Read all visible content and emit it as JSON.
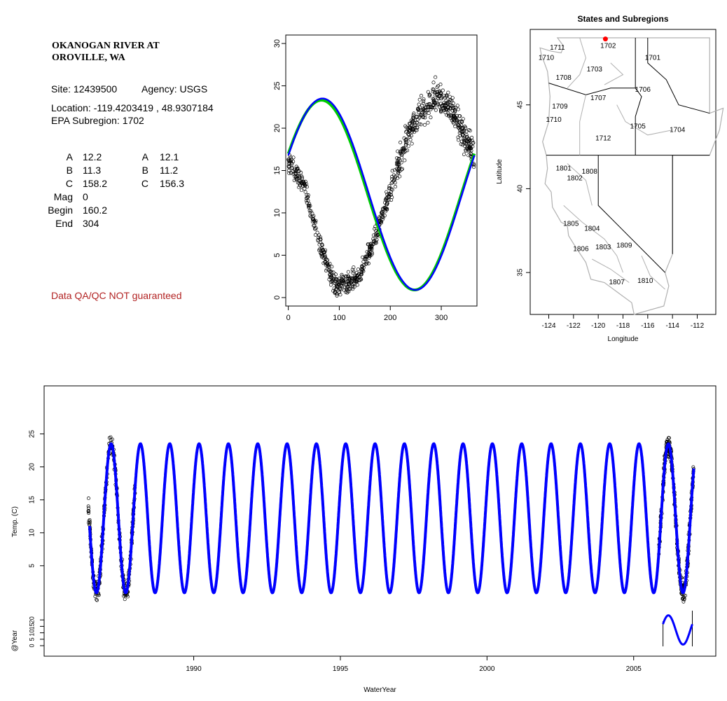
{
  "site": {
    "title_line1": "OKANOGAN RIVER AT",
    "title_line2": "OROVILLE, WA",
    "site_label": "Site: 12439500",
    "agency_label": "Agency: USGS",
    "location_label": "Location: -119.4203419 , 48.9307184",
    "subregion_label": "EPA Subregion: 1702",
    "params_left": [
      {
        "name": "A",
        "value": "12.2"
      },
      {
        "name": "B",
        "value": "11.3"
      },
      {
        "name": "C",
        "value": "158.2"
      },
      {
        "name": "Mag",
        "value": "0"
      },
      {
        "name": "Begin",
        "value": "160.2"
      },
      {
        "name": "End",
        "value": "304"
      }
    ],
    "params_right": [
      {
        "name": "A",
        "value": "12.1"
      },
      {
        "name": "B",
        "value": "11.2"
      },
      {
        "name": "C",
        "value": "156.3"
      }
    ],
    "qa_note": "Data QA/QC NOT guaranteed"
  },
  "colors": {
    "fit_blue": "#0000ff",
    "fit_green": "#00cc00",
    "site_marker": "#ff0000",
    "qa_text": "#b22222",
    "boundary_gray": "#b0b0b0"
  },
  "chart_data": [
    {
      "type": "scatter",
      "xlim": [
        -5,
        370
      ],
      "ylim": [
        -1,
        31
      ],
      "xticks": [
        "0",
        "100",
        "200",
        "300"
      ],
      "yticks": [
        "0",
        "5",
        "10",
        "15",
        "20",
        "25",
        "30"
      ],
      "xlabel": "",
      "ylabel": "",
      "seasonal_fit_blue": {
        "mean": 12.2,
        "amplitude": 11.3,
        "phase_day": 158.2
      },
      "seasonal_fit_green": {
        "mean": 12.1,
        "amplitude": 11.2,
        "phase_day": 156.3
      },
      "observations_envelope": [
        {
          "day": 0,
          "temp": 16.0
        },
        {
          "day": 30,
          "temp": 13.5
        },
        {
          "day": 60,
          "temp": 6.5
        },
        {
          "day": 90,
          "temp": 1.5
        },
        {
          "day": 110,
          "temp": 1.5
        },
        {
          "day": 140,
          "temp": 2.5
        },
        {
          "day": 170,
          "temp": 7.0
        },
        {
          "day": 200,
          "temp": 12.5
        },
        {
          "day": 230,
          "temp": 18.5
        },
        {
          "day": 260,
          "temp": 22.0
        },
        {
          "day": 290,
          "temp": 24.0
        },
        {
          "day": 320,
          "temp": 22.5
        },
        {
          "day": 350,
          "temp": 18.5
        },
        {
          "day": 365,
          "temp": 16.5
        }
      ]
    },
    {
      "type": "map",
      "title": "States and Subregions",
      "xlabel": "Longitude",
      "ylabel": "Latitude",
      "xlim": [
        -125.5,
        -110.5
      ],
      "ylim": [
        32.5,
        49.5
      ],
      "xticks": [
        "-124",
        "-122",
        "-120",
        "-118",
        "-116",
        "-114",
        "-112"
      ],
      "yticks": [
        "35",
        "40",
        "45"
      ],
      "site_point": {
        "lon": -119.42,
        "lat": 48.93
      },
      "subregions": [
        {
          "label": "1711",
          "lon": -123.3,
          "lat": 48.4
        },
        {
          "label": "1710",
          "lon": -124.2,
          "lat": 47.8
        },
        {
          "label": "1702",
          "lon": -119.2,
          "lat": 48.5
        },
        {
          "label": "1701",
          "lon": -115.6,
          "lat": 47.8
        },
        {
          "label": "1703",
          "lon": -120.3,
          "lat": 47.1
        },
        {
          "label": "1708",
          "lon": -122.8,
          "lat": 46.6
        },
        {
          "label": "1706",
          "lon": -116.4,
          "lat": 45.9
        },
        {
          "label": "1707",
          "lon": -120.0,
          "lat": 45.4
        },
        {
          "label": "1709",
          "lon": -123.1,
          "lat": 44.9
        },
        {
          "label": "1710",
          "lon": -123.6,
          "lat": 44.1
        },
        {
          "label": "1705",
          "lon": -116.8,
          "lat": 43.7
        },
        {
          "label": "1704",
          "lon": -113.6,
          "lat": 43.5
        },
        {
          "label": "1712",
          "lon": -119.6,
          "lat": 43.0
        },
        {
          "label": "1801",
          "lon": -122.8,
          "lat": 41.2
        },
        {
          "label": "1808",
          "lon": -120.7,
          "lat": 41.0
        },
        {
          "label": "1802",
          "lon": -121.9,
          "lat": 40.6
        },
        {
          "label": "1805",
          "lon": -122.2,
          "lat": 37.9
        },
        {
          "label": "1804",
          "lon": -120.5,
          "lat": 37.6
        },
        {
          "label": "1806",
          "lon": -121.4,
          "lat": 36.4
        },
        {
          "label": "1803",
          "lon": -119.6,
          "lat": 36.5
        },
        {
          "label": "1809",
          "lon": -117.9,
          "lat": 36.6
        },
        {
          "label": "1807",
          "lon": -118.5,
          "lat": 34.4
        },
        {
          "label": "1810",
          "lon": -116.2,
          "lat": 34.5
        }
      ]
    },
    {
      "type": "line",
      "xlabel": "WaterYear",
      "ylabel": "Temp. (C)",
      "ylabel2": "@Year",
      "xlim": [
        1984.9,
        2007.8
      ],
      "ylim": [
        -1.5,
        29
      ],
      "xticks": [
        "1990",
        "1995",
        "2000",
        "2005"
      ],
      "yticks": [
        "5",
        "10",
        "15",
        "20",
        "25"
      ],
      "yticks2": [
        "0",
        "5",
        "10",
        "15",
        "20"
      ],
      "series": [
        {
          "x_start": 1986.45,
          "x_end": 2007.05,
          "cycles_per_year": 1,
          "mean": 12.2,
          "amplitude": 11.3
        }
      ],
      "observation_periods": [
        [
          1986.4,
          1988.0
        ],
        [
          2005.85,
          2007.05
        ]
      ],
      "inset_year": {
        "x_start": 2006.0,
        "x_end": 2007.0,
        "ylim": [
          0,
          25
        ]
      }
    }
  ]
}
